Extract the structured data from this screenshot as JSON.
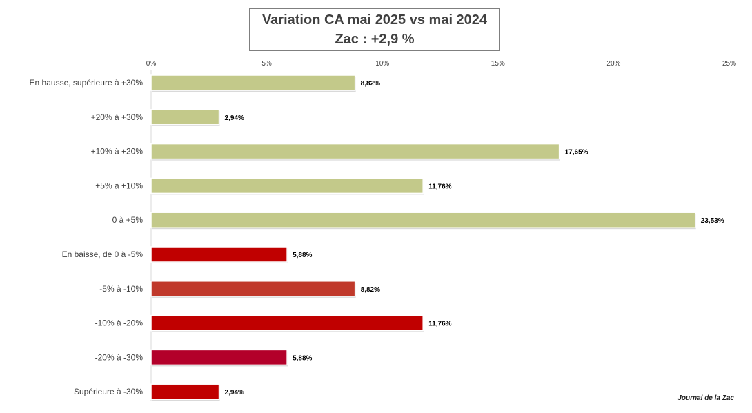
{
  "chart_data": {
    "type": "bar",
    "orientation": "horizontal",
    "title": "Variation CA mai 2025 vs mai 2024",
    "subtitle": "Zac : +2,9 %",
    "x_ticks": [
      "0%",
      "5%",
      "10%",
      "15%",
      "20%",
      "25%"
    ],
    "xlim": [
      0,
      25
    ],
    "grid": false,
    "legend": "none",
    "categories": [
      "En hausse, supérieure à +30%",
      "+20% à +30%",
      "+10% à +20%",
      "+5% à +10%",
      "0 à +5%",
      "En baisse, de 0 à -5%",
      "-5% à -10%",
      "-10% à -20%",
      "-20% à -30%",
      "Supérieure à -30%"
    ],
    "values": [
      8.82,
      2.94,
      17.65,
      11.76,
      23.53,
      5.88,
      8.82,
      11.76,
      5.88,
      2.94
    ],
    "data_labels": [
      "8,82%",
      "2,94%",
      "17,65%",
      "11,76%",
      "23,53%",
      "5,88%",
      "8,82%",
      "11,76%",
      "5,88%",
      "2,94%"
    ],
    "colors": [
      "#c3c98a",
      "#c3c98a",
      "#c3c98a",
      "#c3c98a",
      "#c3c98a",
      "#c00000",
      "#c0392b",
      "#c00000",
      "#b3002a",
      "#c00000"
    ]
  },
  "credit": "Journal de la Zac"
}
